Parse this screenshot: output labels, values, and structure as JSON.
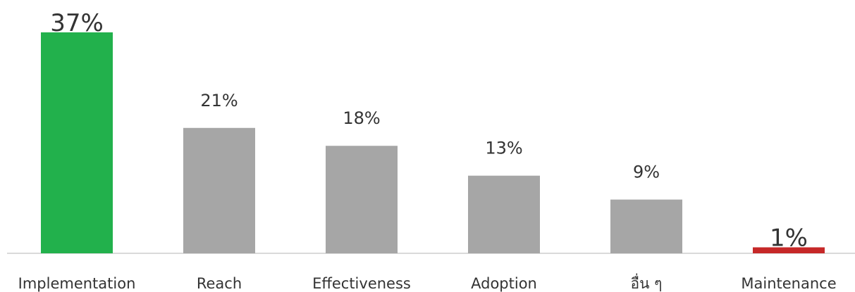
{
  "chart_data": {
    "type": "bar",
    "categories": [
      "Implementation",
      "Reach",
      "Effectiveness",
      "Adoption",
      "อื่น ๆ",
      "Maintenance"
    ],
    "values": [
      37,
      21,
      18,
      13,
      9,
      1
    ],
    "value_labels": [
      "37%",
      "21%",
      "18%",
      "13%",
      "9%",
      "1%"
    ],
    "unit": "%",
    "ylim": [
      0,
      37
    ],
    "grid": false,
    "legend": "none",
    "colors": [
      "#22b14c",
      "#a6a6a6",
      "#a6a6a6",
      "#a6a6a6",
      "#a6a6a6",
      "#c62828"
    ],
    "emphasized": [
      true,
      false,
      false,
      false,
      false,
      true
    ]
  }
}
